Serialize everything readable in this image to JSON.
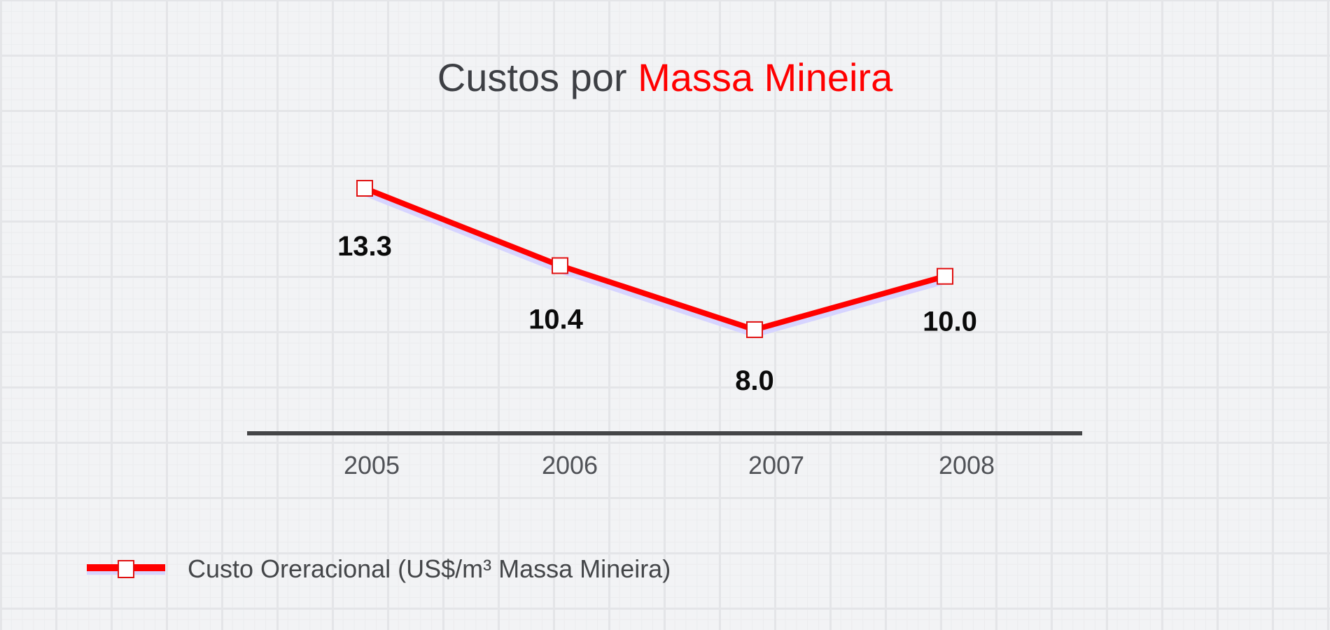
{
  "chart_data": {
    "type": "line",
    "title": {
      "prefix": "Custos por ",
      "highlight": "Massa Mineira"
    },
    "categories": [
      "2005",
      "2006",
      "2007",
      "2008"
    ],
    "series": [
      {
        "name": "Custo Oreracional (US$/m³ Massa Mineira)",
        "values": [
          13.3,
          10.4,
          8.0,
          10.0
        ],
        "labels": [
          "13.3",
          "10.4",
          "8.0",
          "10.0"
        ],
        "color": "#ff0000",
        "shadow_color": "#d6d4ff"
      }
    ],
    "xlabel": "",
    "ylabel": "",
    "ylim": [
      0,
      14
    ],
    "grid": false,
    "legend": "bottom-left"
  }
}
